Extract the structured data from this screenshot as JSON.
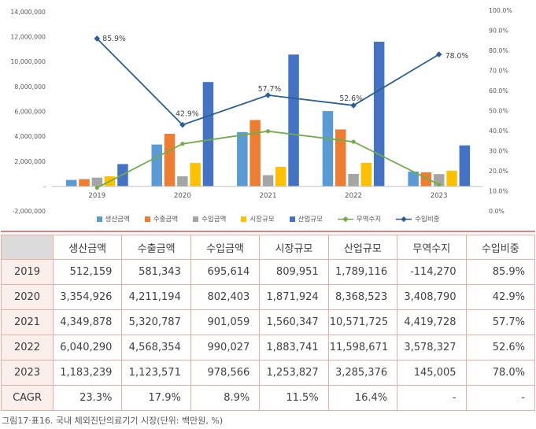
{
  "chart_data": {
    "type": "bar",
    "subtype": "combo-bar-line-dual-axis",
    "title": "",
    "grid": false,
    "legend_position": "bottom",
    "categories": [
      "2019",
      "2020",
      "2021",
      "2022",
      "2023"
    ],
    "left_axis": {
      "min": -2000000,
      "max": 14000000,
      "step": 2000000,
      "ticks": [
        "14,000,000",
        "12,000,000",
        "10,000,000",
        "8,000,000",
        "6,000,000",
        "4,000,000",
        "2,000,000",
        "-",
        "-2,000,000"
      ]
    },
    "right_axis": {
      "min": 0,
      "max": 100,
      "step": 10,
      "ticks": [
        "100.0%",
        "90.0%",
        "80.0%",
        "70.0%",
        "60.0%",
        "50.0%",
        "40.0%",
        "30.0%",
        "20.0%",
        "10.0%",
        "0.0%"
      ]
    },
    "bar_series": [
      {
        "name": "생산금액",
        "color": "#5B9BD5",
        "values": [
          512159,
          3354926,
          4349878,
          6040290,
          1183239
        ]
      },
      {
        "name": "수출금액",
        "color": "#ED7D31",
        "values": [
          581343,
          4211194,
          5320787,
          4568354,
          1123571
        ]
      },
      {
        "name": "수입금액",
        "color": "#A5A5A5",
        "values": [
          695614,
          802403,
          901059,
          990027,
          978566
        ]
      },
      {
        "name": "시장규모",
        "color": "#FFC000",
        "values": [
          809951,
          1871924,
          1560347,
          1883741,
          1253827
        ]
      },
      {
        "name": "산업규모",
        "color": "#4472C4",
        "values": [
          1789116,
          8368523,
          10571725,
          11598671,
          3285376
        ]
      }
    ],
    "line_series": [
      {
        "name": "무역수지",
        "color": "#70AD47",
        "axis": "left",
        "marker": "circle",
        "values": [
          -114270,
          3408790,
          4419728,
          3578327,
          145005
        ],
        "point_labels": []
      },
      {
        "name": "수입비중",
        "color": "#2A5E96",
        "axis": "right",
        "marker": "diamond",
        "values": [
          85.9,
          42.9,
          57.7,
          52.6,
          78.0
        ],
        "point_labels": [
          "85.9%",
          "42.9%",
          "57.7%",
          "52.6%",
          "78.0%"
        ]
      }
    ]
  },
  "table": {
    "columns": [
      "",
      "생산금액",
      "수출금액",
      "수입금액",
      "시장규모",
      "산업규모",
      "무역수지",
      "수입비중"
    ],
    "rows": [
      {
        "label": "2019",
        "values": [
          "512,159",
          "581,343",
          "695,614",
          "809,951",
          "1,789,116",
          "-114,270",
          "85.9%"
        ]
      },
      {
        "label": "2020",
        "values": [
          "3,354,926",
          "4,211,194",
          "802,403",
          "1,871,924",
          "8,368,523",
          "3,408,790",
          "42.9%"
        ]
      },
      {
        "label": "2021",
        "values": [
          "4,349,878",
          "5,320,787",
          "901,059",
          "1,560,347",
          "10,571,725",
          "4,419,728",
          "57.7%"
        ]
      },
      {
        "label": "2022",
        "values": [
          "6,040,290",
          "4,568,354",
          "990,027",
          "1,883,741",
          "11,598,671",
          "3,578,327",
          "52.6%"
        ]
      },
      {
        "label": "2023",
        "values": [
          "1,183,239",
          "1,123,571",
          "978,566",
          "1,253,827",
          "3,285,376",
          "145,005",
          "78.0%"
        ]
      },
      {
        "label": "CAGR",
        "values": [
          "23.3%",
          "17.9%",
          "8.9%",
          "11.5%",
          "16.4%",
          "-",
          "-"
        ]
      }
    ],
    "colors": {
      "border": "#EEACA3",
      "top_rule": "#E3827A",
      "corner_bg": "#DBDBDB",
      "row_label_bg": "#FBEFEC"
    }
  },
  "caption": "그림17·표16. 국내 체외진단의료기기 시장(단위: 백만원, %)"
}
